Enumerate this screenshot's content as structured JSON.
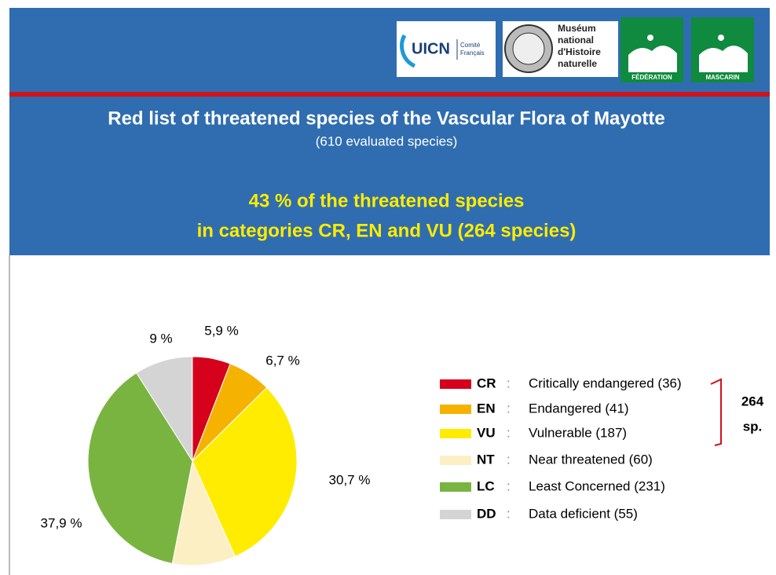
{
  "header": {
    "logos": {
      "uicn": "UICN",
      "uicn_sub": [
        "Comité",
        "Français"
      ],
      "mnhn": [
        "Muséum",
        "national",
        "d'Histoire",
        "naturelle"
      ],
      "cbn1": "FÉDÉRATION",
      "cbn2": "MASCARIN"
    }
  },
  "title": "Red list of threatened species of the Vascular Flora of Mayotte",
  "subtitle": "(610 evaluated species)",
  "highlight": [
    "43 % of the threatened species",
    "in categories CR, EN and VU (264 species)"
  ],
  "chart_data": {
    "type": "pie",
    "categories": [
      "CR",
      "EN",
      "VU",
      "NT",
      "LC",
      "DD"
    ],
    "descriptions": [
      "Critically endangered (36)",
      "Endangered (41)",
      "Vulnerable (187)",
      "Near threatened (60)",
      "Least Concerned (231)",
      "Data deficient (55)"
    ],
    "legend_separator": ":",
    "values": [
      5.9,
      6.7,
      30.7,
      9.8,
      37.9,
      9
    ],
    "value_labels": [
      "5,9 %",
      "6,7 %",
      "30,7 %",
      null,
      "37,9 %",
      "9 %"
    ],
    "colors": [
      "#d5001c",
      "#f5b300",
      "#ffec00",
      "#fcefc4",
      "#7ab440",
      "#d4d4d4"
    ],
    "annotation": [
      "264",
      "sp."
    ]
  }
}
